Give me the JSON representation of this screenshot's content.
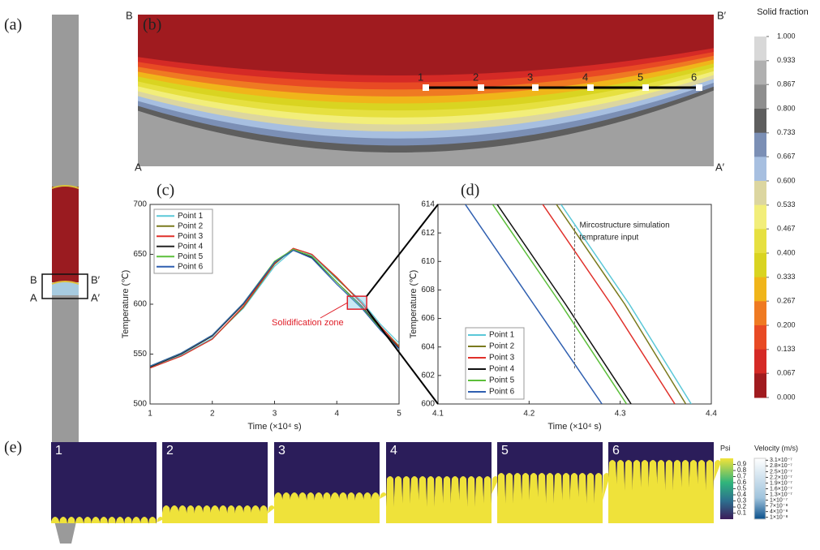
{
  "panel_labels": [
    "(a)",
    "(b)",
    "(c)",
    "(d)",
    "(e)"
  ],
  "panel_a": {
    "labels": [
      "B",
      "B′",
      "A",
      "A′"
    ]
  },
  "panel_b": {
    "corner_labels": [
      "B",
      "B′",
      "A",
      "A′"
    ],
    "point_labels": [
      "1",
      "2",
      "3",
      "4",
      "5",
      "6"
    ]
  },
  "colorbar": {
    "title": "Solid fraction",
    "ticks": [
      {
        "value": 1,
        "label": "1.000"
      },
      {
        "value": 0.933,
        "label": "0.933"
      },
      {
        "value": 0.867,
        "label": "0.867"
      },
      {
        "value": 0.8,
        "label": "0.800"
      },
      {
        "value": 0.733,
        "label": "0.733"
      },
      {
        "value": 0.667,
        "label": "0.667"
      },
      {
        "value": 0.6,
        "label": "0.600"
      },
      {
        "value": 0.533,
        "label": "0.533"
      },
      {
        "value": 0.467,
        "label": "0.467"
      },
      {
        "value": 0.4,
        "label": "0.400"
      },
      {
        "value": 0.333,
        "label": "0.333"
      },
      {
        "value": 0.267,
        "label": "0.267"
      },
      {
        "value": 0.2,
        "label": "0.200"
      },
      {
        "value": 0.133,
        "label": "0.133"
      },
      {
        "value": 0.067,
        "label": "0.067"
      },
      {
        "value": 0,
        "label": "0.000"
      }
    ],
    "colors": [
      "#d8d8d8",
      "#b0b0b0",
      "#8e8e8e",
      "#5e5e5e",
      "#7b8fb5",
      "#a7bfe0",
      "#dcd6a0",
      "#f2ee7a",
      "#e6e040",
      "#d9d421",
      "#f0b51a",
      "#ef7a22",
      "#e84a24",
      "#d52a26",
      "#a01b1f"
    ]
  },
  "chart_data": [
    {
      "type": "line",
      "xlabel": "Time (×10⁴ s)",
      "ylabel": "Temperature (℃)",
      "xlim": [
        1,
        5
      ],
      "ylim": [
        500,
        700
      ],
      "xticks": [
        1,
        2,
        3,
        4,
        5
      ],
      "yticks": [
        500,
        550,
        600,
        650,
        700
      ],
      "x": [
        1,
        1.5,
        2,
        2.5,
        3,
        3.3,
        3.6,
        4,
        4.4,
        4.7,
        5
      ],
      "annotation": "Solidification zone",
      "zoom_box": {
        "x": [
          4.17,
          4.48
        ],
        "y": [
          595,
          608
        ]
      },
      "legend": "upper left",
      "series": [
        {
          "name": "Point 1",
          "color": "#5bc8d8",
          "values": [
            537,
            549,
            566,
            596,
            638,
            654,
            649,
            625,
            603,
            580,
            561
          ]
        },
        {
          "name": "Point 2",
          "color": "#7a7a1e",
          "values": [
            536,
            548,
            565,
            597,
            640,
            656,
            650,
            626,
            601,
            578,
            558
          ]
        },
        {
          "name": "Point 3",
          "color": "#e0302a",
          "values": [
            536,
            548,
            565,
            598,
            641,
            656,
            650,
            627,
            601,
            578,
            557
          ]
        },
        {
          "name": "Point 4",
          "color": "#222222",
          "values": [
            537,
            550,
            568,
            600,
            642,
            654,
            647,
            622,
            598,
            576,
            556
          ]
        },
        {
          "name": "Point 5",
          "color": "#5cbf3a",
          "values": [
            538,
            551,
            569,
            601,
            643,
            655,
            648,
            622,
            597,
            575,
            555
          ]
        },
        {
          "name": "Point 6",
          "color": "#2f5fb0",
          "values": [
            538,
            551,
            569,
            601,
            642,
            654,
            646,
            620,
            596,
            574,
            555
          ]
        }
      ]
    },
    {
      "type": "line",
      "xlabel": "Time (×10⁴ s)",
      "ylabel": "Temperature (℃)",
      "xlim": [
        4.1,
        4.4
      ],
      "ylim": [
        600,
        614
      ],
      "xticks": [
        4.1,
        4.2,
        4.3,
        4.4
      ],
      "yticks": [
        600,
        602,
        604,
        606,
        608,
        610,
        612,
        614
      ],
      "annotation": [
        "Mircostructure simulation",
        "temprature input"
      ],
      "annotation_line": {
        "x": 4.25,
        "y": [
          602.5,
          612.5
        ]
      },
      "legend": "lower left",
      "series": [
        {
          "name": "Point 1",
          "color": "#5bc8d8",
          "x": [
            4.235,
            4.31,
            4.378
          ],
          "values": [
            614,
            607,
            600
          ]
        },
        {
          "name": "Point 2",
          "color": "#7a7a1e",
          "x": [
            4.23,
            4.305,
            4.372
          ],
          "values": [
            614,
            607,
            600
          ]
        },
        {
          "name": "Point 3",
          "color": "#e0302a",
          "x": [
            4.215,
            4.29,
            4.36
          ],
          "values": [
            614,
            607,
            600
          ]
        },
        {
          "name": "Point 4",
          "color": "#111111",
          "x": [
            4.165,
            4.24,
            4.312
          ],
          "values": [
            614,
            607,
            600
          ]
        },
        {
          "name": "Point 5",
          "color": "#5cbf3a",
          "x": [
            4.16,
            4.235,
            4.307
          ],
          "values": [
            614,
            607,
            600
          ]
        },
        {
          "name": "Point 6",
          "color": "#2f5fb0",
          "x": [
            4.13,
            4.205,
            4.28
          ],
          "values": [
            614,
            607,
            600
          ]
        }
      ]
    }
  ],
  "panel_e": {
    "frame_labels": [
      "1",
      "2",
      "3",
      "4",
      "5",
      "6"
    ],
    "psi": {
      "title": "Psi",
      "ticks": [
        0.9,
        0.8,
        0.7,
        0.6,
        0.5,
        0.4,
        0.3,
        0.2,
        0.1
      ]
    },
    "velocity": {
      "title": "Velocity (m/s)",
      "ticks": [
        {
          "value": 3.1e-07,
          "label": "3.1×10⁻⁷"
        },
        {
          "value": 2.8e-07,
          "label": "2.8×10⁻⁷"
        },
        {
          "value": 2.5e-07,
          "label": "2.5×10⁻⁷"
        },
        {
          "value": 2.2e-07,
          "label": "2.2×10⁻⁷"
        },
        {
          "value": 1.9e-07,
          "label": "1.9×10⁻⁷"
        },
        {
          "value": 1.6e-07,
          "label": "1.6×10⁻⁷"
        },
        {
          "value": 1.3e-07,
          "label": "1.3×10⁻⁷"
        },
        {
          "value": 1e-07,
          "label": "1×10⁻⁷"
        },
        {
          "value": 7e-08,
          "label": "7×10⁻⁸"
        },
        {
          "value": 4e-08,
          "label": "4×10⁻⁸"
        },
        {
          "value": 1e-08,
          "label": "1×10⁻⁸"
        }
      ]
    }
  }
}
